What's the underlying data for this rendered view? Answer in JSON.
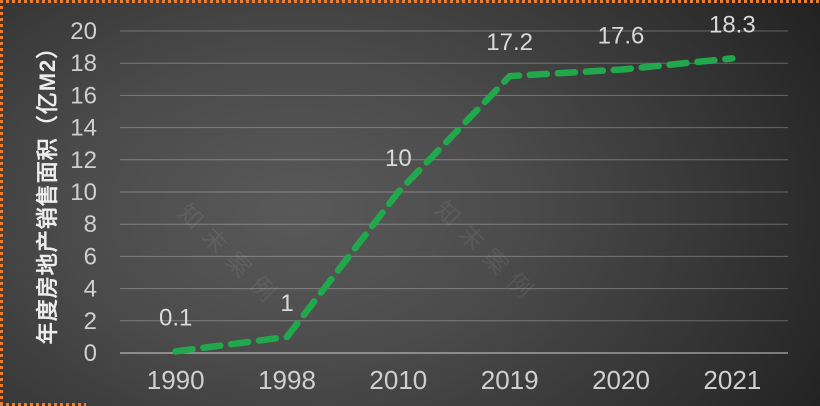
{
  "chart_data": {
    "type": "line",
    "title": "",
    "xlabel": "",
    "ylabel": "年度房地产销售面积（亿M2）",
    "categories": [
      "1990",
      "1998",
      "2010",
      "2019",
      "2020",
      "2021"
    ],
    "series": [
      {
        "name": "年度房地产销售面积",
        "values": [
          0.1,
          1,
          10,
          17.2,
          17.6,
          18.3
        ],
        "data_labels": [
          "0.1",
          "1",
          "10",
          "17.2",
          "17.6",
          "18.3"
        ],
        "color": "#21a84d",
        "line_style": "dashed"
      }
    ],
    "ylim": [
      0,
      20
    ],
    "ytick_step": 2,
    "yticks": [
      "0",
      "2",
      "4",
      "6",
      "8",
      "10",
      "12",
      "14",
      "16",
      "18",
      "20"
    ],
    "grid": true,
    "legend": "none"
  },
  "watermark": {
    "text": "知末案例"
  },
  "frame": {
    "selection_border_color": "#ed7d31"
  }
}
